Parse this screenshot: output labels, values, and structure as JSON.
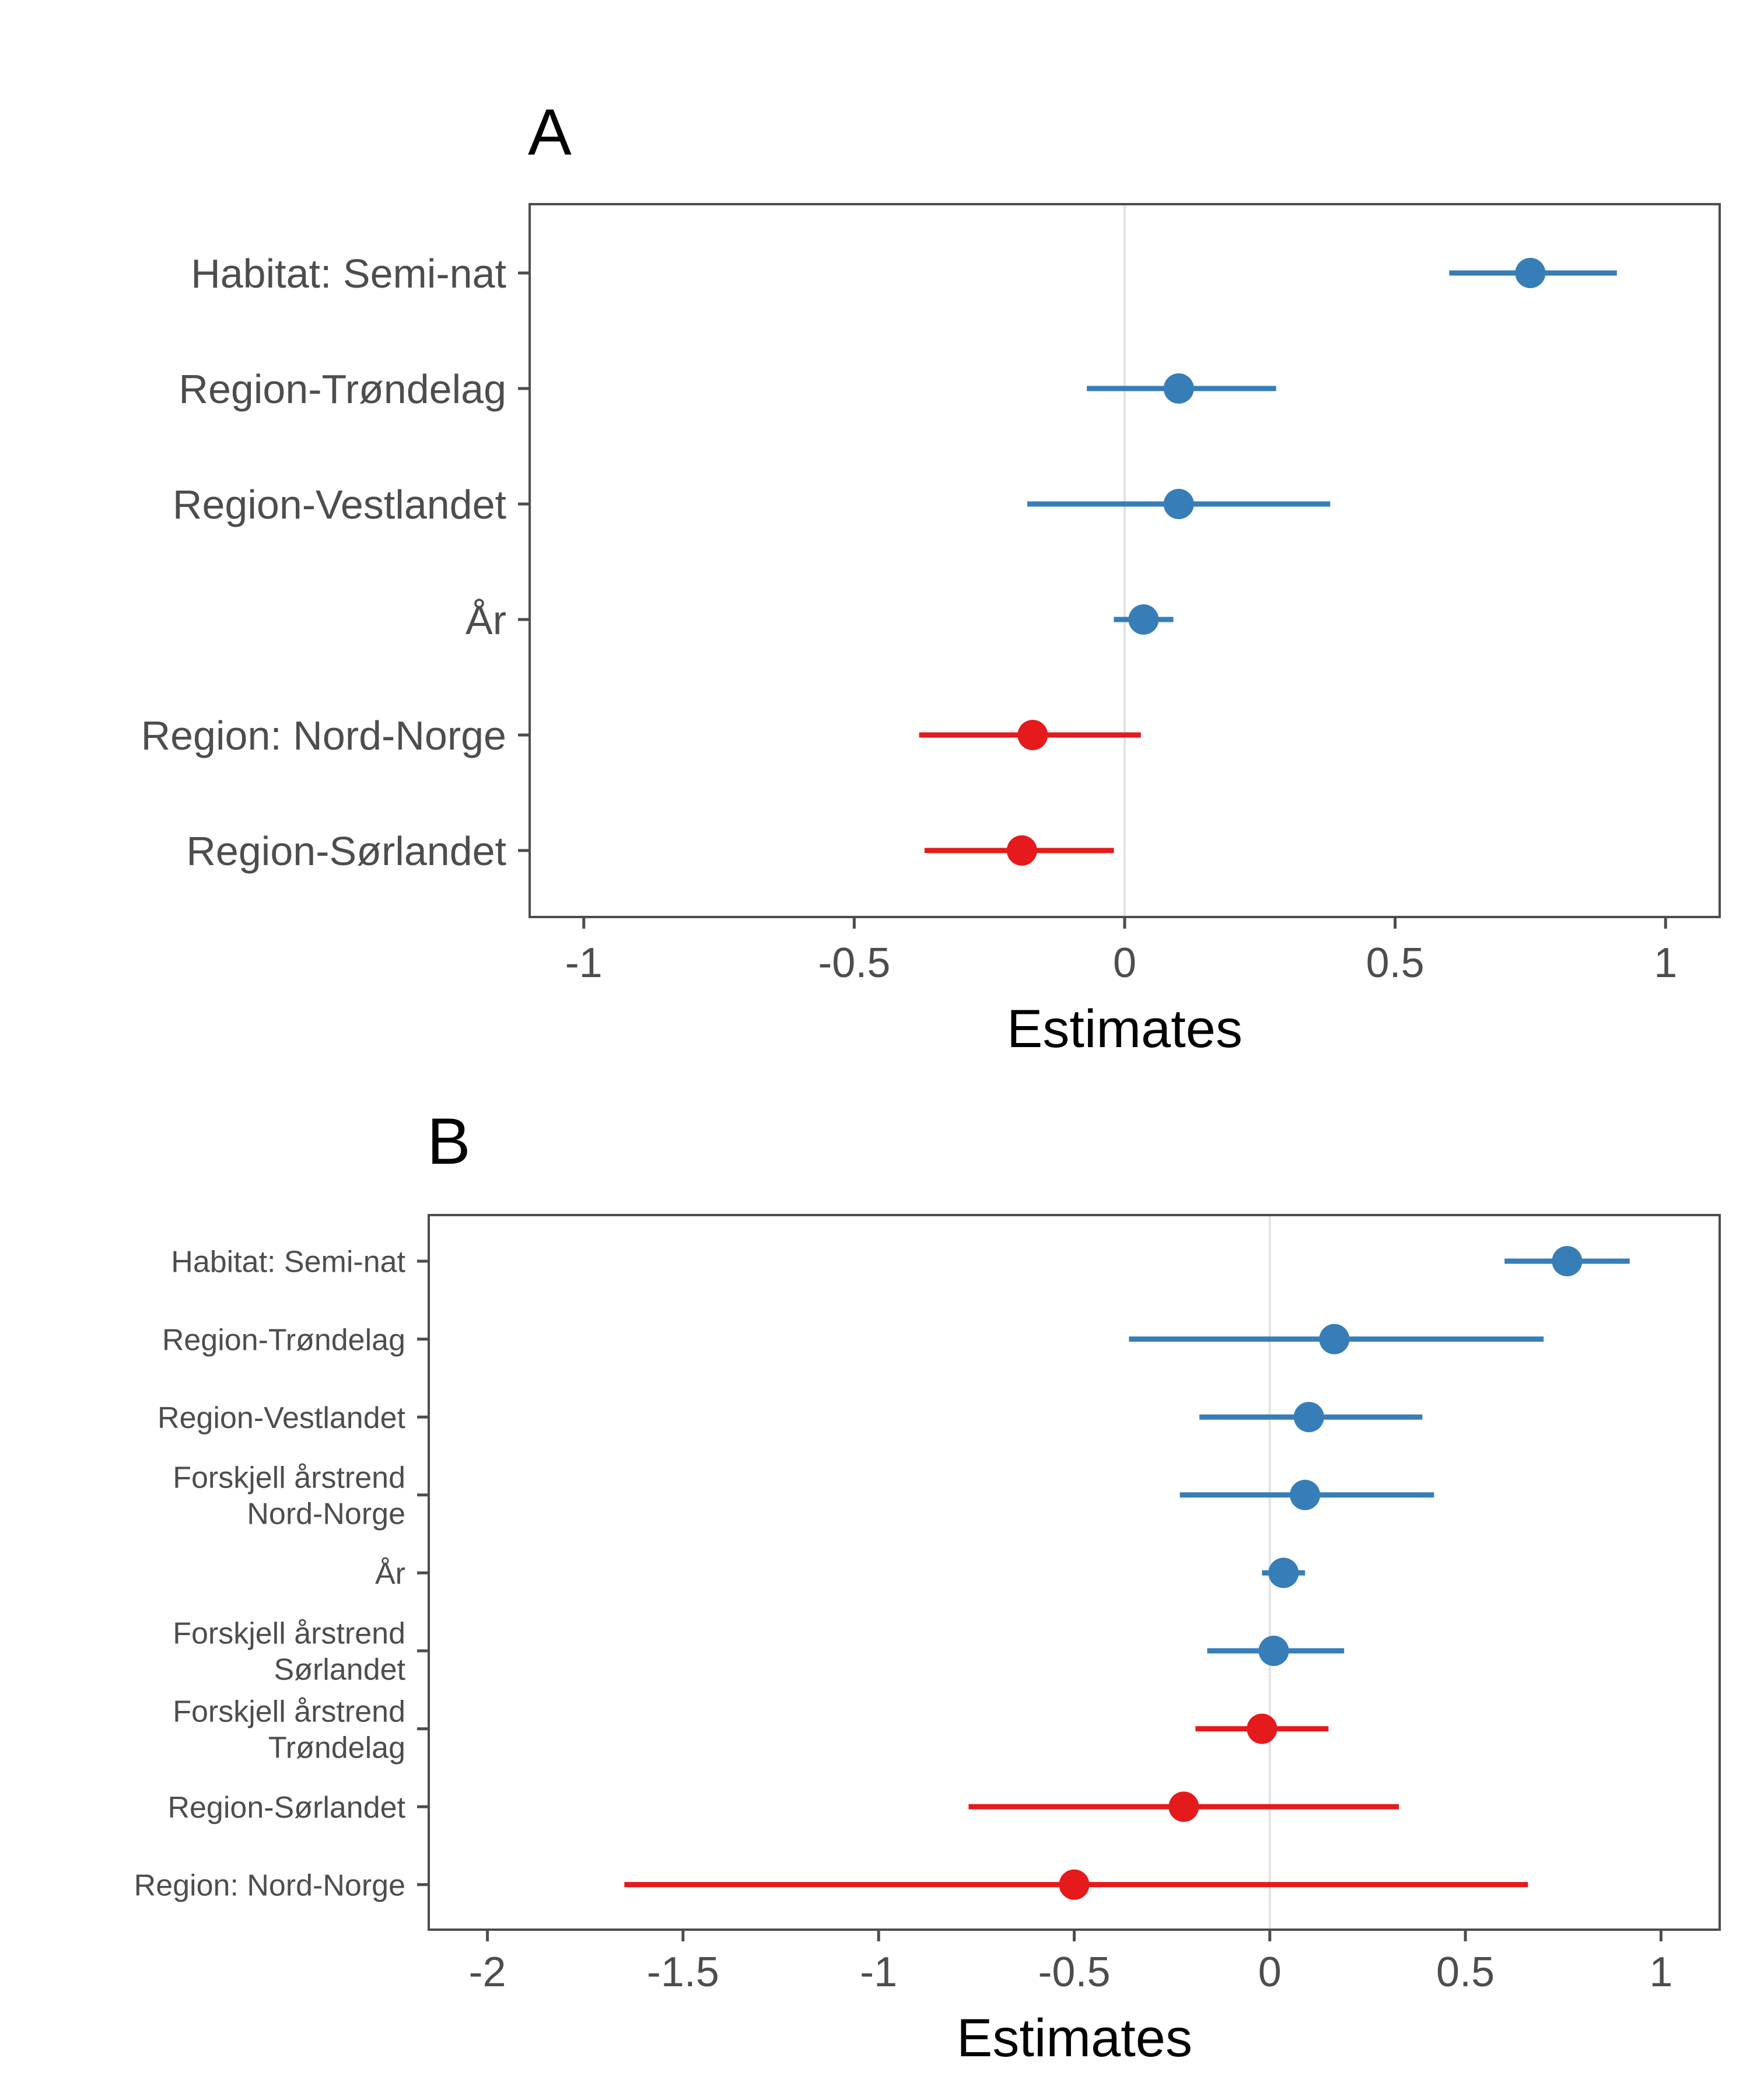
{
  "colors": {
    "positive": "#377EB8",
    "negative": "#E41A1C",
    "axis": "#4d4d4d",
    "zero_line": "#e3e3e3"
  },
  "chart_data": [
    {
      "panel": "A",
      "type": "scatter",
      "subtype": "coefficient-plot (point estimate with interval)",
      "title": "A",
      "xlabel": "Estimates",
      "ylabel": "",
      "xlim": [
        -1.1,
        1.1
      ],
      "x_ticks": [
        -1,
        -0.5,
        0,
        0.5,
        1
      ],
      "x_tick_labels": [
        "-1",
        "-0.5",
        "0",
        "0.5",
        "1"
      ],
      "grid": false,
      "reference_line_x": 0,
      "terms": [
        {
          "label": [
            "Habitat: Semi-nat"
          ],
          "estimate": 0.75,
          "low": 0.6,
          "high": 0.91,
          "sign": "positive"
        },
        {
          "label": [
            "Region-Trøndelag"
          ],
          "estimate": 0.1,
          "low": -0.07,
          "high": 0.28,
          "sign": "positive"
        },
        {
          "label": [
            "Region-Vestlandet"
          ],
          "estimate": 0.1,
          "low": -0.18,
          "high": 0.38,
          "sign": "positive"
        },
        {
          "label": [
            "År"
          ],
          "estimate": 0.035,
          "low": -0.02,
          "high": 0.09,
          "sign": "positive"
        },
        {
          "label": [
            "Region: Nord-Norge"
          ],
          "estimate": -0.17,
          "low": -0.38,
          "high": 0.03,
          "sign": "negative"
        },
        {
          "label": [
            "Region-Sørlandet"
          ],
          "estimate": -0.19,
          "low": -0.37,
          "high": -0.02,
          "sign": "negative"
        }
      ]
    },
    {
      "panel": "B",
      "type": "scatter",
      "subtype": "coefficient-plot (point estimate with interval)",
      "title": "B",
      "xlabel": "Estimates",
      "ylabel": "",
      "xlim": [
        -2.15,
        1.15
      ],
      "x_ticks": [
        -2,
        -1.5,
        -1,
        -0.5,
        0,
        0.5,
        1
      ],
      "x_tick_labels": [
        "-2",
        "-1.5",
        "-1",
        "-0.5",
        "0",
        "0.5",
        "1"
      ],
      "grid": false,
      "reference_line_x": 0,
      "terms": [
        {
          "label": [
            "Habitat: Semi-nat"
          ],
          "estimate": 0.76,
          "low": 0.6,
          "high": 0.92,
          "sign": "positive"
        },
        {
          "label": [
            "Region-Trøndelag"
          ],
          "estimate": 0.165,
          "low": -0.36,
          "high": 0.7,
          "sign": "positive"
        },
        {
          "label": [
            "Region-Vestlandet"
          ],
          "estimate": 0.1,
          "low": -0.18,
          "high": 0.39,
          "sign": "positive"
        },
        {
          "label": [
            "Forskjell årstrend",
            "Nord-Norge"
          ],
          "estimate": 0.09,
          "low": -0.23,
          "high": 0.42,
          "sign": "positive"
        },
        {
          "label": [
            "År"
          ],
          "estimate": 0.035,
          "low": -0.02,
          "high": 0.09,
          "sign": "positive"
        },
        {
          "label": [
            "Forskjell årstrend",
            "Sørlandet"
          ],
          "estimate": 0.01,
          "low": -0.16,
          "high": 0.19,
          "sign": "positive"
        },
        {
          "label": [
            "Forskjell årstrend",
            "Trøndelag"
          ],
          "estimate": -0.02,
          "low": -0.19,
          "high": 0.15,
          "sign": "negative"
        },
        {
          "label": [
            "Region-Sørlandet"
          ],
          "estimate": -0.22,
          "low": -0.77,
          "high": 0.33,
          "sign": "negative"
        },
        {
          "label": [
            "Region: Nord-Norge"
          ],
          "estimate": -0.5,
          "low": -1.65,
          "high": 0.66,
          "sign": "negative"
        }
      ]
    }
  ]
}
